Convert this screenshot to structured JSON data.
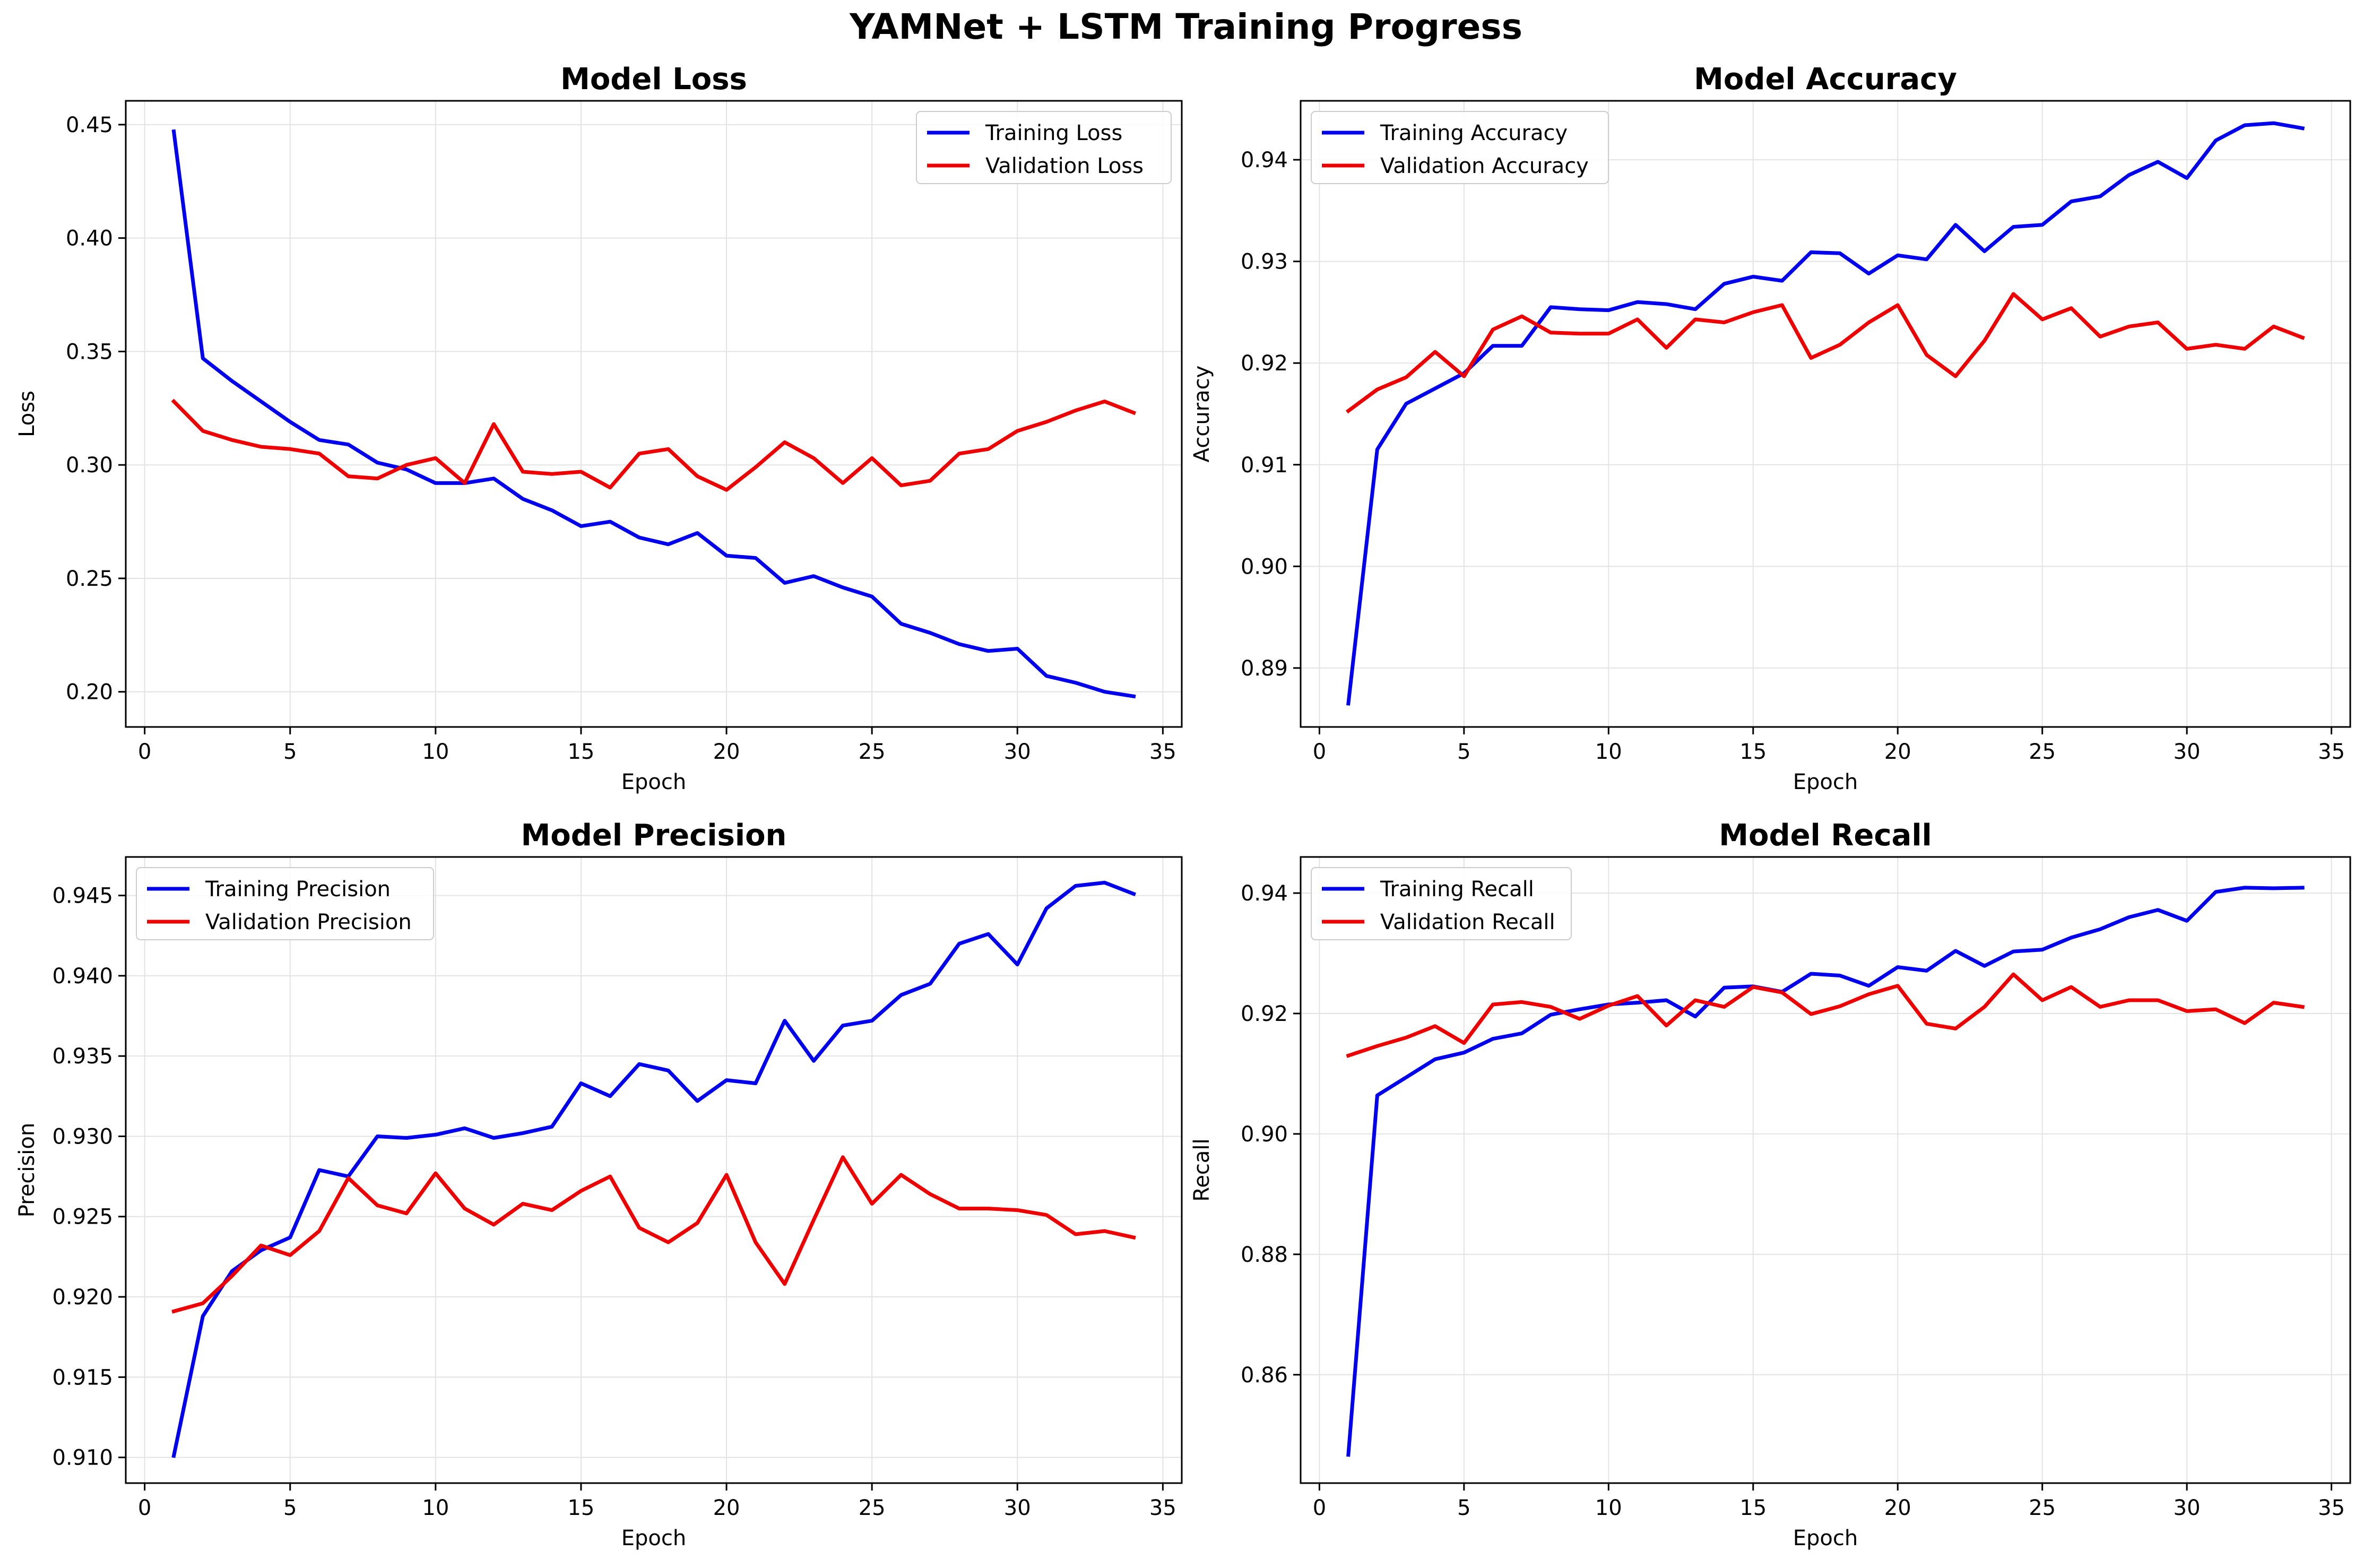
{
  "figure": {
    "title": "YAMNet + LSTM Training Progress"
  },
  "colors": {
    "training": "#0000ee",
    "validation": "#ee0000",
    "grid": "#e3e3e3",
    "axes": "#000000"
  },
  "chart_data": [
    {
      "type": "line",
      "title": "Model Loss",
      "xlabel": "Epoch",
      "ylabel": "Loss",
      "xlim": [
        -0.65,
        35.65
      ],
      "ylim": [
        0.1845,
        0.4605
      ],
      "xticks": [
        0,
        5,
        10,
        15,
        20,
        25,
        30,
        35
      ],
      "yticks": [
        0.2,
        0.25,
        0.3,
        0.35,
        0.4,
        0.45
      ],
      "ytick_labels": [
        "0.20",
        "0.25",
        "0.30",
        "0.35",
        "0.40",
        "0.45"
      ],
      "grid": true,
      "legend_position": "top-right",
      "x": [
        1,
        2,
        3,
        4,
        5,
        6,
        7,
        8,
        9,
        10,
        11,
        12,
        13,
        14,
        15,
        16,
        17,
        18,
        19,
        20,
        21,
        22,
        23,
        24,
        25,
        26,
        27,
        28,
        29,
        30,
        31,
        32,
        33,
        34
      ],
      "series": [
        {
          "name": "Training Loss",
          "color": "#0000ee",
          "values": [
            0.447,
            0.347,
            0.337,
            0.328,
            0.319,
            0.311,
            0.309,
            0.301,
            0.298,
            0.292,
            0.292,
            0.294,
            0.285,
            0.28,
            0.273,
            0.275,
            0.268,
            0.265,
            0.27,
            0.26,
            0.259,
            0.248,
            0.251,
            0.246,
            0.242,
            0.23,
            0.226,
            0.221,
            0.218,
            0.219,
            0.207,
            0.204,
            0.2,
            0.198
          ]
        },
        {
          "name": "Validation Loss",
          "color": "#ee0000",
          "values": [
            0.328,
            0.315,
            0.311,
            0.308,
            0.307,
            0.305,
            0.295,
            0.294,
            0.3,
            0.303,
            0.292,
            0.318,
            0.297,
            0.296,
            0.297,
            0.29,
            0.305,
            0.307,
            0.295,
            0.289,
            0.299,
            0.31,
            0.303,
            0.292,
            0.303,
            0.291,
            0.293,
            0.305,
            0.307,
            0.315,
            0.319,
            0.324,
            0.328,
            0.323
          ]
        }
      ]
    },
    {
      "type": "line",
      "title": "Model Accuracy",
      "xlabel": "Epoch",
      "ylabel": "Accuracy",
      "xlim": [
        -0.65,
        35.65
      ],
      "ylim": [
        0.8842,
        0.9458
      ],
      "xticks": [
        0,
        5,
        10,
        15,
        20,
        25,
        30,
        35
      ],
      "yticks": [
        0.89,
        0.9,
        0.91,
        0.92,
        0.93,
        0.94
      ],
      "ytick_labels": [
        "0.89",
        "0.90",
        "0.91",
        "0.92",
        "0.93",
        "0.94"
      ],
      "grid": true,
      "legend_position": "top-left",
      "x": [
        1,
        2,
        3,
        4,
        5,
        6,
        7,
        8,
        9,
        10,
        11,
        12,
        13,
        14,
        15,
        16,
        17,
        18,
        19,
        20,
        21,
        22,
        23,
        24,
        25,
        26,
        27,
        28,
        29,
        30,
        31,
        32,
        33,
        34
      ],
      "series": [
        {
          "name": "Training Accuracy",
          "color": "#0000ee",
          "values": [
            0.8865,
            0.9115,
            0.916,
            0.9175,
            0.919,
            0.9217,
            0.9217,
            0.9255,
            0.9253,
            0.9252,
            0.926,
            0.9258,
            0.9253,
            0.9278,
            0.9285,
            0.9281,
            0.9309,
            0.9308,
            0.9288,
            0.9306,
            0.9302,
            0.9336,
            0.931,
            0.9334,
            0.9336,
            0.9359,
            0.9364,
            0.9385,
            0.9398,
            0.9382,
            0.9419,
            0.9434,
            0.9436,
            0.9431
          ]
        },
        {
          "name": "Validation Accuracy",
          "color": "#ee0000",
          "values": [
            0.9153,
            0.9174,
            0.9186,
            0.9211,
            0.9187,
            0.9233,
            0.9246,
            0.923,
            0.9229,
            0.9229,
            0.9243,
            0.9215,
            0.9243,
            0.924,
            0.925,
            0.9257,
            0.9205,
            0.9218,
            0.924,
            0.9257,
            0.9208,
            0.9187,
            0.9222,
            0.9268,
            0.9243,
            0.9254,
            0.9226,
            0.9236,
            0.924,
            0.9214,
            0.9218,
            0.9214,
            0.9236,
            0.9225
          ]
        }
      ]
    },
    {
      "type": "line",
      "title": "Model Precision",
      "xlabel": "Epoch",
      "ylabel": "Precision",
      "xlim": [
        -0.65,
        35.65
      ],
      "ylim": [
        0.9084,
        0.9474
      ],
      "xticks": [
        0,
        5,
        10,
        15,
        20,
        25,
        30,
        35
      ],
      "yticks": [
        0.91,
        0.915,
        0.92,
        0.925,
        0.93,
        0.935,
        0.94,
        0.945
      ],
      "ytick_labels": [
        "0.910",
        "0.915",
        "0.920",
        "0.925",
        "0.930",
        "0.935",
        "0.940",
        "0.945"
      ],
      "grid": true,
      "legend_position": "top-left",
      "x": [
        1,
        2,
        3,
        4,
        5,
        6,
        7,
        8,
        9,
        10,
        11,
        12,
        13,
        14,
        15,
        16,
        17,
        18,
        19,
        20,
        21,
        22,
        23,
        24,
        25,
        26,
        27,
        28,
        29,
        30,
        31,
        32,
        33,
        34
      ],
      "series": [
        {
          "name": "Training Precision",
          "color": "#0000ee",
          "values": [
            0.9101,
            0.9188,
            0.9216,
            0.9229,
            0.9237,
            0.9279,
            0.9275,
            0.93,
            0.9299,
            0.9301,
            0.9305,
            0.9299,
            0.9302,
            0.9306,
            0.9333,
            0.9325,
            0.9345,
            0.9341,
            0.9322,
            0.9335,
            0.9333,
            0.9372,
            0.9347,
            0.9369,
            0.9372,
            0.9388,
            0.9395,
            0.942,
            0.9426,
            0.9407,
            0.9442,
            0.9456,
            0.9458,
            0.9451
          ]
        },
        {
          "name": "Validation Precision",
          "color": "#ee0000",
          "values": [
            0.9191,
            0.9196,
            0.9213,
            0.9232,
            0.9226,
            0.9241,
            0.9274,
            0.9257,
            0.9252,
            0.9277,
            0.9255,
            0.9245,
            0.9258,
            0.9254,
            0.9266,
            0.9275,
            0.9243,
            0.9234,
            0.9246,
            0.9276,
            0.9234,
            0.9208,
            0.9248,
            0.9287,
            0.9258,
            0.9276,
            0.9264,
            0.9255,
            0.9255,
            0.9254,
            0.9251,
            0.9239,
            0.9241,
            0.9237
          ]
        }
      ]
    },
    {
      "type": "line",
      "title": "Model Recall",
      "xlabel": "Epoch",
      "ylabel": "Recall",
      "xlim": [
        -0.65,
        35.65
      ],
      "ylim": [
        0.842,
        0.946
      ],
      "xticks": [
        0,
        5,
        10,
        15,
        20,
        25,
        30,
        35
      ],
      "yticks": [
        0.86,
        0.88,
        0.9,
        0.92,
        0.94
      ],
      "ytick_labels": [
        "0.86",
        "0.88",
        "0.90",
        "0.92",
        "0.94"
      ],
      "grid": true,
      "legend_position": "top-left",
      "x": [
        1,
        2,
        3,
        4,
        5,
        6,
        7,
        8,
        9,
        10,
        11,
        12,
        13,
        14,
        15,
        16,
        17,
        18,
        19,
        20,
        21,
        22,
        23,
        24,
        25,
        26,
        27,
        28,
        29,
        30,
        31,
        32,
        33,
        34
      ],
      "series": [
        {
          "name": "Training Recall",
          "color": "#0000ee",
          "values": [
            0.8467,
            0.9064,
            0.9094,
            0.9124,
            0.9135,
            0.9158,
            0.9167,
            0.9198,
            0.9207,
            0.9215,
            0.9218,
            0.9222,
            0.9195,
            0.9243,
            0.9245,
            0.9236,
            0.9266,
            0.9263,
            0.9246,
            0.9277,
            0.9271,
            0.9304,
            0.9279,
            0.9303,
            0.9306,
            0.9326,
            0.934,
            0.936,
            0.9372,
            0.9354,
            0.9402,
            0.9409,
            0.9408,
            0.9409
          ]
        },
        {
          "name": "Validation Recall",
          "color": "#ee0000",
          "values": [
            0.913,
            0.9146,
            0.916,
            0.9179,
            0.9151,
            0.9215,
            0.9219,
            0.9211,
            0.9191,
            0.9213,
            0.9229,
            0.918,
            0.9222,
            0.9211,
            0.9244,
            0.9235,
            0.9199,
            0.9212,
            0.9232,
            0.9246,
            0.9183,
            0.9175,
            0.9211,
            0.9265,
            0.9222,
            0.9244,
            0.9211,
            0.9222,
            0.9222,
            0.9204,
            0.9207,
            0.9184,
            0.9218,
            0.9211
          ]
        }
      ]
    }
  ]
}
